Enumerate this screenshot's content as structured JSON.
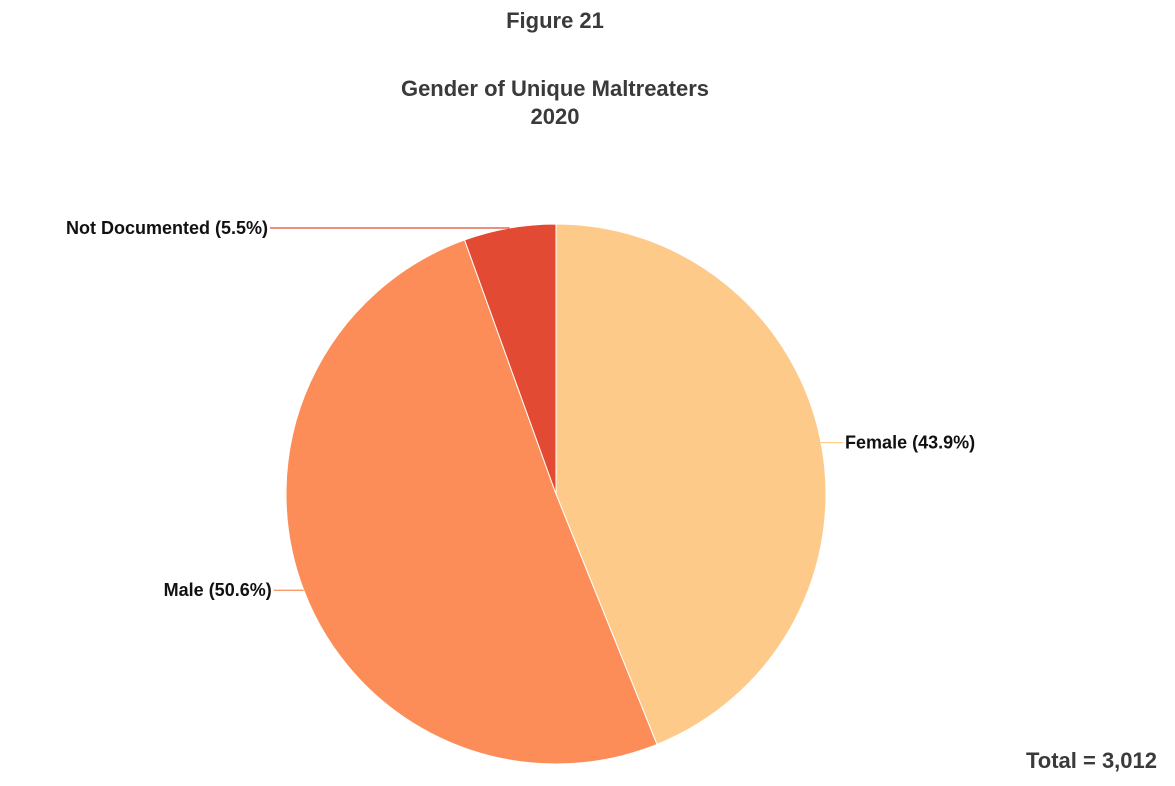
{
  "figure_label": "Figure 21",
  "total_text": "Total = 3,012",
  "chart_data": {
    "type": "pie",
    "title": "Gender of Unique Maltreaters",
    "subtitle": "2020",
    "slices": [
      {
        "label": "Female (43.9%)",
        "name": "Female",
        "value": 43.9,
        "color": "#fdca8a"
      },
      {
        "label": "Male (50.6%)",
        "name": "Male",
        "value": 50.6,
        "color": "#fc8d59"
      },
      {
        "label": "Not Documented (5.5%)",
        "name": "Not Documented",
        "value": 5.5,
        "color": "#e34a33"
      }
    ],
    "total": 3012,
    "legend": "none"
  }
}
